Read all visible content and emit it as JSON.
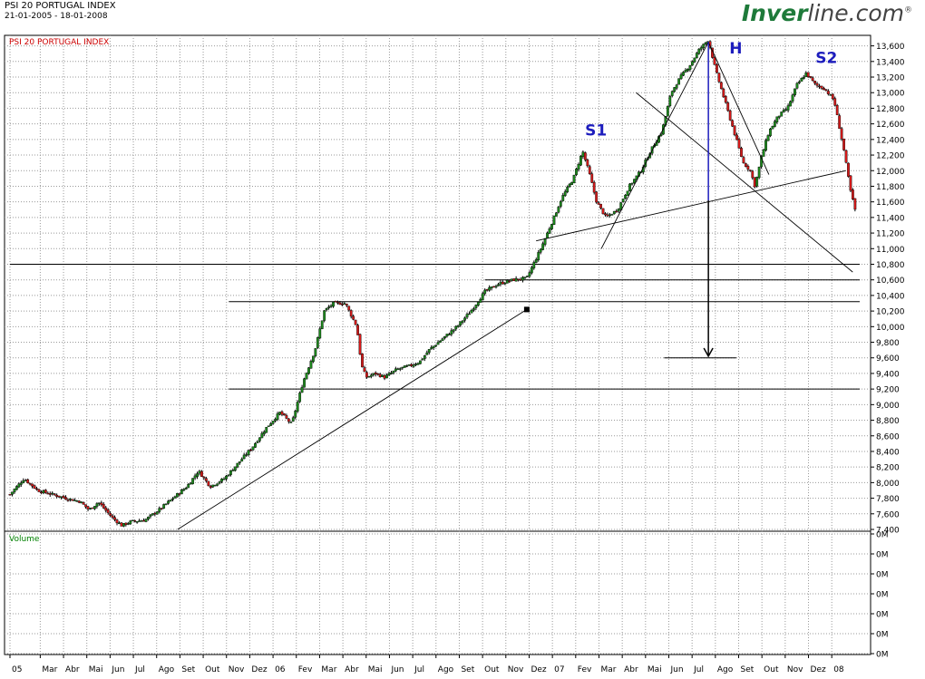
{
  "header": {
    "title": "PSI 20 PORTUGAL INDEX",
    "date_range": "21-01-2005 - 18-01-2008",
    "inner_label": "PSI 20 PORTUGAL INDEX",
    "volume_label": "Volume"
  },
  "logo": {
    "part1": "Inver",
    "part2": "line.com",
    "mark": "®"
  },
  "chart_data": {
    "type": "candlestick",
    "ylim": [
      7400,
      13700
    ],
    "y_ticks": [
      7400,
      7600,
      7800,
      8000,
      8200,
      8400,
      8600,
      8800,
      9000,
      9200,
      9400,
      9600,
      9800,
      10000,
      10200,
      10400,
      10600,
      10800,
      11000,
      11200,
      11400,
      11600,
      11800,
      12000,
      12200,
      12400,
      12600,
      12800,
      13000,
      13200,
      13400,
      13600
    ],
    "y_tick_labels": [
      "7,400",
      "7,600",
      "7,800",
      "8,000",
      "8,200",
      "8,400",
      "8,600",
      "8,800",
      "9,000",
      "9,200",
      "9,400",
      "9,600",
      "9,800",
      "10,000",
      "10,200",
      "10,400",
      "10,600",
      "10,800",
      "11,000",
      "11,200",
      "11,400",
      "11,600",
      "11,800",
      "12,000",
      "12,200",
      "12,400",
      "12,600",
      "12,800",
      "13,000",
      "13,200",
      "13,400",
      "13,600"
    ],
    "x_labels": [
      "05",
      "Mar",
      "Abr",
      "Mai",
      "Jun",
      "Jul",
      "Ago",
      "Set",
      "Out",
      "Nov",
      "Dez",
      "06",
      "Fev",
      "Mar",
      "Abr",
      "Mai",
      "Jun",
      "Jul",
      "Ago",
      "Set",
      "Out",
      "Nov",
      "Dez",
      "07",
      "Fev",
      "Mar",
      "Abr",
      "Mai",
      "Jun",
      "Jul",
      "Ago",
      "Set",
      "Out",
      "Nov",
      "Dez",
      "08"
    ],
    "x_label_months": [
      0,
      1.3,
      2.3,
      3.3,
      4.3,
      5.3,
      6.3,
      7.3,
      8.3,
      9.3,
      10.3,
      11.3,
      12.3,
      13.3,
      14.3,
      15.3,
      16.3,
      17.3,
      18.3,
      19.3,
      20.3,
      21.3,
      22.3,
      23.3,
      24.3,
      25.3,
      26.3,
      27.3,
      28.3,
      29.3,
      30.3,
      31.3,
      32.3,
      33.3,
      34.3,
      35.3
    ],
    "price_path": [
      [
        0,
        7850
      ],
      [
        0.6,
        8050
      ],
      [
        1.2,
        7900
      ],
      [
        1.8,
        7850
      ],
      [
        2.4,
        7800
      ],
      [
        3.0,
        7760
      ],
      [
        3.4,
        7650
      ],
      [
        3.8,
        7750
      ],
      [
        4.4,
        7550
      ],
      [
        4.8,
        7450
      ],
      [
        5.2,
        7500
      ],
      [
        5.8,
        7520
      ],
      [
        6.4,
        7650
      ],
      [
        7.0,
        7800
      ],
      [
        7.6,
        7950
      ],
      [
        8.1,
        8150
      ],
      [
        8.6,
        7950
      ],
      [
        9.2,
        8050
      ],
      [
        9.8,
        8250
      ],
      [
        10.4,
        8450
      ],
      [
        11.0,
        8700
      ],
      [
        11.6,
        8900
      ],
      [
        12.1,
        8750
      ],
      [
        12.6,
        9300
      ],
      [
        13.1,
        9700
      ],
      [
        13.5,
        10200
      ],
      [
        13.9,
        10300
      ],
      [
        14.4,
        10300
      ],
      [
        14.9,
        10000
      ],
      [
        15.1,
        9500
      ],
      [
        15.3,
        9350
      ],
      [
        15.7,
        9400
      ],
      [
        16.1,
        9350
      ],
      [
        16.6,
        9450
      ],
      [
        17.2,
        9500
      ],
      [
        17.6,
        9550
      ],
      [
        18.0,
        9700
      ],
      [
        18.6,
        9850
      ],
      [
        19.2,
        10000
      ],
      [
        19.8,
        10200
      ],
      [
        20.4,
        10450
      ],
      [
        21.0,
        10550
      ],
      [
        21.6,
        10600
      ],
      [
        22.2,
        10620
      ],
      [
        22.8,
        11000
      ],
      [
        23.3,
        11350
      ],
      [
        23.7,
        11650
      ],
      [
        24.2,
        11900
      ],
      [
        24.6,
        12250
      ],
      [
        24.9,
        11950
      ],
      [
        25.2,
        11600
      ],
      [
        25.6,
        11400
      ],
      [
        26.1,
        11500
      ],
      [
        26.6,
        11800
      ],
      [
        27.1,
        12000
      ],
      [
        27.6,
        12300
      ],
      [
        28.0,
        12500
      ],
      [
        28.4,
        13000
      ],
      [
        28.8,
        13200
      ],
      [
        29.2,
        13350
      ],
      [
        29.6,
        13550
      ],
      [
        30.0,
        13680
      ],
      [
        30.3,
        13300
      ],
      [
        30.6,
        13000
      ],
      [
        30.9,
        12700
      ],
      [
        31.2,
        12400
      ],
      [
        31.5,
        12100
      ],
      [
        31.8,
        12000
      ],
      [
        32.0,
        11800
      ],
      [
        32.3,
        12200
      ],
      [
        32.6,
        12500
      ],
      [
        33.0,
        12700
      ],
      [
        33.4,
        12800
      ],
      [
        33.8,
        13100
      ],
      [
        34.2,
        13250
      ],
      [
        34.6,
        13100
      ],
      [
        35.0,
        13050
      ],
      [
        35.4,
        12900
      ],
      [
        35.8,
        12300
      ],
      [
        36.1,
        11750
      ],
      [
        36.3,
        11500
      ]
    ],
    "candle_count": 380,
    "x_range_months": [
      0,
      36.5
    ],
    "trendlines": [
      [
        [
          7.2,
          7400
        ],
        [
          22.2,
          10220
        ]
      ],
      [
        [
          22.6,
          11100
        ],
        [
          35.9,
          12000
        ]
      ],
      [
        [
          25.4,
          11000
        ],
        [
          30.0,
          13650
        ]
      ],
      [
        [
          26.9,
          13000
        ],
        [
          36.2,
          10700
        ]
      ],
      [
        [
          30.0,
          13650
        ],
        [
          32.6,
          11950
        ]
      ]
    ],
    "horizontal_lines": [
      {
        "y": 10800,
        "x": [
          0,
          36.5
        ]
      },
      {
        "y": 10600,
        "x": [
          20.4,
          36.5
        ]
      },
      {
        "y": 10320,
        "x": [
          9.4,
          36.5
        ]
      },
      {
        "y": 9200,
        "x": [
          9.4,
          36.5
        ]
      },
      {
        "y": 9600,
        "x": [
          28.1,
          31.2
        ]
      }
    ],
    "endpoint_marker": {
      "x": 22.2,
      "y": 10220
    },
    "measure_line": {
      "x": 30.0,
      "y_top": 13650,
      "y_mid": 11620,
      "y_arrow": 9620
    },
    "annotations": [
      {
        "text": "S1",
        "x": 24.7,
        "y": 12450
      },
      {
        "text": "H",
        "x": 30.9,
        "y": 13500
      },
      {
        "text": "S2",
        "x": 34.6,
        "y": 13380
      }
    ],
    "volume_ticks": [
      "0M",
      "0M",
      "0M",
      "0M",
      "0M",
      "0M",
      "0M"
    ],
    "grid": true,
    "colors": {
      "up": "#1d8a1d",
      "down": "#d61a1a",
      "grid": "#999999",
      "annotation": "#1d1dbd",
      "measure": "#1d1dbd",
      "trend": "#000000",
      "inner_title": "#cc0000",
      "volume_label": "#008000"
    }
  }
}
